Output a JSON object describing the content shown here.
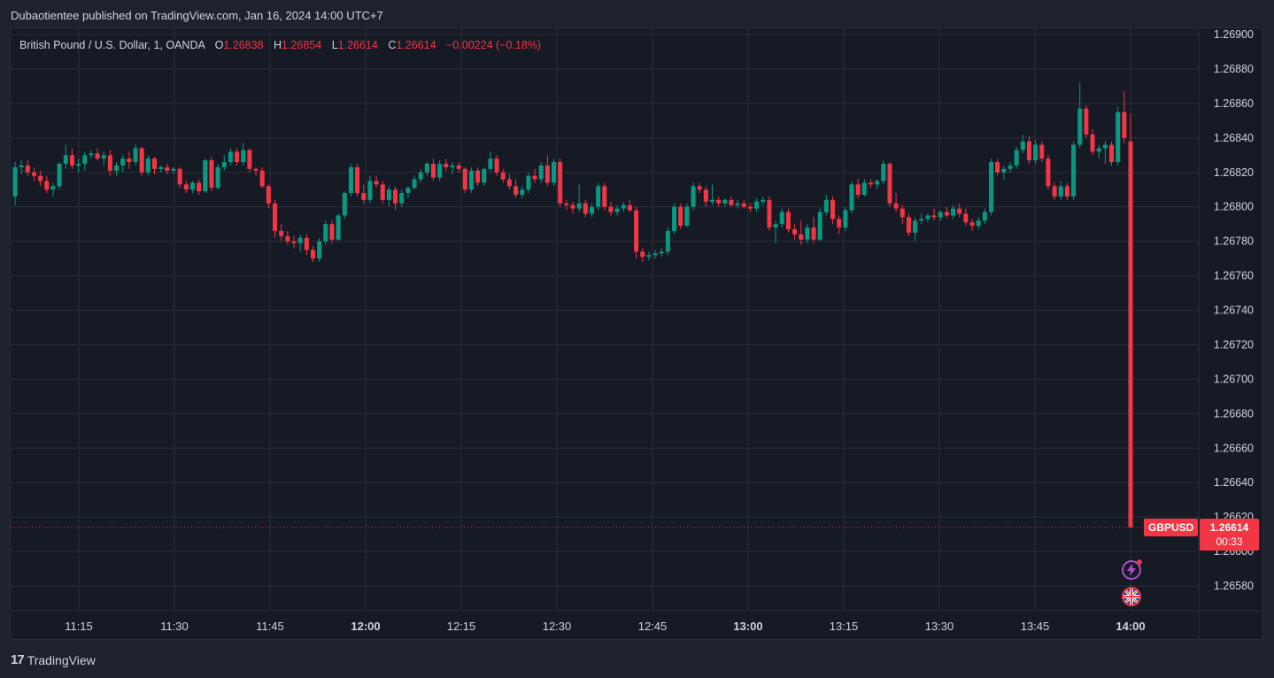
{
  "publisher": "Dubaotientee published on TradingView.com, Jan 16, 2024 14:00 UTC+7",
  "legend": {
    "symbol": "British Pound / U.S. Dollar, 1, OANDA",
    "o_label": "O",
    "o_value": "1.26838",
    "h_label": "H",
    "h_value": "1.26854",
    "l_label": "L",
    "l_value": "1.26614",
    "c_label": "C",
    "c_value": "1.26614",
    "change": "−0.00224 (−0.18%)"
  },
  "price_tag": {
    "symbol": "GBPUSD",
    "price": "1.26614",
    "timer": "00:33"
  },
  "footer": {
    "brand": "TradingView",
    "mark": "17"
  },
  "icons": {
    "bolt": "lightning-icon",
    "flag": "uk-flag-icon"
  },
  "colors": {
    "up": "#089981",
    "down": "#f23645",
    "background": "#161a25",
    "grid": "#2a2e39"
  },
  "chart_data": {
    "type": "candlestick",
    "symbol": "GBPUSD",
    "interval": "1",
    "y_ticks": [
      "1.26900",
      "1.26880",
      "1.26860",
      "1.26840",
      "1.26820",
      "1.26800",
      "1.26780",
      "1.26760",
      "1.26740",
      "1.26720",
      "1.26700",
      "1.26680",
      "1.26660",
      "1.26640",
      "1.26620",
      "1.26600",
      "1.26580"
    ],
    "ylim": [
      1.2657,
      1.26905
    ],
    "x_ticks": [
      {
        "label": "11:15",
        "bold": false
      },
      {
        "label": "11:30",
        "bold": false
      },
      {
        "label": "11:45",
        "bold": false
      },
      {
        "label": "12:00",
        "bold": true
      },
      {
        "label": "12:15",
        "bold": false
      },
      {
        "label": "12:30",
        "bold": false
      },
      {
        "label": "12:45",
        "bold": false
      },
      {
        "label": "13:00",
        "bold": true
      },
      {
        "label": "13:15",
        "bold": false
      },
      {
        "label": "13:30",
        "bold": false
      },
      {
        "label": "13:45",
        "bold": false
      },
      {
        "label": "14:00",
        "bold": true
      }
    ],
    "last_price": 1.26614,
    "candles": [
      [
        1.26806,
        1.26826,
        1.26801,
        1.26823
      ],
      [
        1.26823,
        1.26827,
        1.26819,
        1.26824
      ],
      [
        1.26824,
        1.26827,
        1.26818,
        1.2682
      ],
      [
        1.2682,
        1.26823,
        1.26815,
        1.26818
      ],
      [
        1.26818,
        1.26821,
        1.26812,
        1.26815
      ],
      [
        1.26815,
        1.26818,
        1.26808,
        1.2681
      ],
      [
        1.2681,
        1.26814,
        1.26806,
        1.26812
      ],
      [
        1.26812,
        1.26826,
        1.2681,
        1.26825
      ],
      [
        1.26825,
        1.26836,
        1.26822,
        1.2683
      ],
      [
        1.2683,
        1.26834,
        1.26822,
        1.26824
      ],
      [
        1.26824,
        1.26828,
        1.2682,
        1.26825
      ],
      [
        1.26825,
        1.26832,
        1.26821,
        1.2683
      ],
      [
        1.2683,
        1.26833,
        1.26828,
        1.26831
      ],
      [
        1.26831,
        1.26834,
        1.26827,
        1.26828
      ],
      [
        1.26828,
        1.26832,
        1.26824,
        1.2683
      ],
      [
        1.2683,
        1.26833,
        1.26818,
        1.26821
      ],
      [
        1.26821,
        1.26826,
        1.26818,
        1.26824
      ],
      [
        1.26824,
        1.2683,
        1.2682,
        1.26828
      ],
      [
        1.26828,
        1.26832,
        1.26822,
        1.26826
      ],
      [
        1.26826,
        1.26836,
        1.26824,
        1.26834
      ],
      [
        1.26834,
        1.26835,
        1.26818,
        1.2682
      ],
      [
        1.2682,
        1.2683,
        1.26818,
        1.26828
      ],
      [
        1.26828,
        1.26829,
        1.26819,
        1.26822
      ],
      [
        1.26822,
        1.26824,
        1.2682,
        1.26823
      ],
      [
        1.26823,
        1.26825,
        1.26819,
        1.26821
      ],
      [
        1.26821,
        1.26823,
        1.26819,
        1.26822
      ],
      [
        1.26822,
        1.26823,
        1.26811,
        1.26813
      ],
      [
        1.26813,
        1.26815,
        1.26808,
        1.2681
      ],
      [
        1.2681,
        1.26815,
        1.26808,
        1.26814
      ],
      [
        1.26814,
        1.26816,
        1.26807,
        1.26809
      ],
      [
        1.26809,
        1.26828,
        1.26808,
        1.26827
      ],
      [
        1.26827,
        1.26829,
        1.26809,
        1.26811
      ],
      [
        1.26811,
        1.26825,
        1.2681,
        1.26823
      ],
      [
        1.26823,
        1.2683,
        1.26821,
        1.26826
      ],
      [
        1.26826,
        1.26834,
        1.26824,
        1.26832
      ],
      [
        1.26832,
        1.26834,
        1.26824,
        1.26826
      ],
      [
        1.26826,
        1.26837,
        1.26824,
        1.26833
      ],
      [
        1.26833,
        1.26834,
        1.2682,
        1.26822
      ],
      [
        1.26822,
        1.26823,
        1.26818,
        1.26821
      ],
      [
        1.26821,
        1.26823,
        1.26811,
        1.26812
      ],
      [
        1.26812,
        1.26813,
        1.26799,
        1.26802
      ],
      [
        1.26802,
        1.26804,
        1.26782,
        1.26786
      ],
      [
        1.26786,
        1.2679,
        1.2678,
        1.26783
      ],
      [
        1.26783,
        1.26786,
        1.26778,
        1.2678
      ],
      [
        1.2678,
        1.26783,
        1.26776,
        1.26779
      ],
      [
        1.26779,
        1.26784,
        1.26774,
        1.26782
      ],
      [
        1.26782,
        1.26784,
        1.26772,
        1.26775
      ],
      [
        1.26775,
        1.26777,
        1.26768,
        1.2677
      ],
      [
        1.2677,
        1.26782,
        1.26768,
        1.2678
      ],
      [
        1.2678,
        1.26792,
        1.26778,
        1.2679
      ],
      [
        1.2679,
        1.26792,
        1.26779,
        1.26781
      ],
      [
        1.26781,
        1.26796,
        1.2678,
        1.26795
      ],
      [
        1.26795,
        1.26809,
        1.26793,
        1.26808
      ],
      [
        1.26808,
        1.26825,
        1.26806,
        1.26823
      ],
      [
        1.26823,
        1.26825,
        1.26806,
        1.26808
      ],
      [
        1.26808,
        1.26813,
        1.26802,
        1.26804
      ],
      [
        1.26804,
        1.26818,
        1.26802,
        1.26815
      ],
      [
        1.26815,
        1.26818,
        1.26811,
        1.26813
      ],
      [
        1.26813,
        1.26815,
        1.26802,
        1.26804
      ],
      [
        1.26804,
        1.26812,
        1.268,
        1.2681
      ],
      [
        1.2681,
        1.26812,
        1.26798,
        1.26802
      ],
      [
        1.26802,
        1.2681,
        1.268,
        1.26808
      ],
      [
        1.26808,
        1.26812,
        1.26805,
        1.26811
      ],
      [
        1.26811,
        1.26818,
        1.2681,
        1.26816
      ],
      [
        1.26816,
        1.26822,
        1.26814,
        1.2682
      ],
      [
        1.2682,
        1.26826,
        1.26818,
        1.26825
      ],
      [
        1.26825,
        1.26828,
        1.26815,
        1.26817
      ],
      [
        1.26817,
        1.26827,
        1.26815,
        1.26825
      ],
      [
        1.26825,
        1.26828,
        1.26821,
        1.26823
      ],
      [
        1.26823,
        1.26826,
        1.26819,
        1.26824
      ],
      [
        1.26824,
        1.26826,
        1.2682,
        1.26822
      ],
      [
        1.26822,
        1.26823,
        1.26808,
        1.2681
      ],
      [
        1.2681,
        1.26823,
        1.26808,
        1.26821
      ],
      [
        1.26821,
        1.26823,
        1.26812,
        1.26814
      ],
      [
        1.26814,
        1.26823,
        1.26812,
        1.26822
      ],
      [
        1.26822,
        1.26832,
        1.2682,
        1.26828
      ],
      [
        1.26828,
        1.2683,
        1.26818,
        1.2682
      ],
      [
        1.2682,
        1.26822,
        1.26814,
        1.26816
      ],
      [
        1.26816,
        1.26819,
        1.2681,
        1.26812
      ],
      [
        1.26812,
        1.26816,
        1.26805,
        1.26807
      ],
      [
        1.26807,
        1.26812,
        1.26805,
        1.2681
      ],
      [
        1.2681,
        1.2682,
        1.26808,
        1.26818
      ],
      [
        1.26818,
        1.26822,
        1.26814,
        1.26816
      ],
      [
        1.26816,
        1.26826,
        1.26814,
        1.26824
      ],
      [
        1.26824,
        1.2683,
        1.26812,
        1.26814
      ],
      [
        1.26814,
        1.26828,
        1.26812,
        1.26826
      ],
      [
        1.26826,
        1.26828,
        1.268,
        1.26802
      ],
      [
        1.26802,
        1.26804,
        1.26798,
        1.26801
      ],
      [
        1.26801,
        1.26803,
        1.26796,
        1.26799
      ],
      [
        1.26799,
        1.26813,
        1.26797,
        1.26802
      ],
      [
        1.26802,
        1.26804,
        1.26794,
        1.26796
      ],
      [
        1.26796,
        1.26802,
        1.26794,
        1.268
      ],
      [
        1.268,
        1.26814,
        1.26798,
        1.26812
      ],
      [
        1.26812,
        1.26814,
        1.26798,
        1.268
      ],
      [
        1.268,
        1.26803,
        1.26795,
        1.26797
      ],
      [
        1.26797,
        1.26801,
        1.26795,
        1.26799
      ],
      [
        1.26799,
        1.26803,
        1.26797,
        1.26801
      ],
      [
        1.26801,
        1.26804,
        1.26797,
        1.26798
      ],
      [
        1.26798,
        1.268,
        1.2677,
        1.26774
      ],
      [
        1.26774,
        1.26776,
        1.26768,
        1.26771
      ],
      [
        1.26771,
        1.26774,
        1.26769,
        1.26772
      ],
      [
        1.26772,
        1.26775,
        1.2677,
        1.26773
      ],
      [
        1.26773,
        1.26776,
        1.26771,
        1.26774
      ],
      [
        1.26774,
        1.26788,
        1.26772,
        1.26786
      ],
      [
        1.26786,
        1.26802,
        1.26784,
        1.268
      ],
      [
        1.268,
        1.26802,
        1.26787,
        1.26789
      ],
      [
        1.26789,
        1.26802,
        1.26788,
        1.268
      ],
      [
        1.268,
        1.26814,
        1.26798,
        1.26812
      ],
      [
        1.26812,
        1.26814,
        1.26808,
        1.2681
      ],
      [
        1.2681,
        1.26812,
        1.268,
        1.26803
      ],
      [
        1.26803,
        1.26813,
        1.26801,
        1.26804
      ],
      [
        1.26804,
        1.26806,
        1.268,
        1.26802
      ],
      [
        1.26802,
        1.26805,
        1.268,
        1.26804
      ],
      [
        1.26804,
        1.26806,
        1.268,
        1.26801
      ],
      [
        1.26801,
        1.26804,
        1.26799,
        1.26802
      ],
      [
        1.26802,
        1.26804,
        1.26799,
        1.268
      ],
      [
        1.268,
        1.26802,
        1.26797,
        1.26799
      ],
      [
        1.26799,
        1.26805,
        1.26797,
        1.26803
      ],
      [
        1.26803,
        1.26806,
        1.26801,
        1.26804
      ],
      [
        1.26804,
        1.26806,
        1.26786,
        1.26788
      ],
      [
        1.26788,
        1.26792,
        1.26779,
        1.2679
      ],
      [
        1.2679,
        1.26799,
        1.26788,
        1.26797
      ],
      [
        1.26797,
        1.26799,
        1.26785,
        1.26787
      ],
      [
        1.26787,
        1.2679,
        1.26781,
        1.26784
      ],
      [
        1.26784,
        1.26792,
        1.26778,
        1.26781
      ],
      [
        1.26781,
        1.2679,
        1.26779,
        1.26788
      ],
      [
        1.26788,
        1.26794,
        1.26779,
        1.26781
      ],
      [
        1.26781,
        1.26799,
        1.2678,
        1.26797
      ],
      [
        1.26797,
        1.26807,
        1.26795,
        1.26804
      ],
      [
        1.26804,
        1.26806,
        1.2679,
        1.26793
      ],
      [
        1.26793,
        1.26795,
        1.26784,
        1.26788
      ],
      [
        1.26788,
        1.268,
        1.26786,
        1.26798
      ],
      [
        1.26798,
        1.26815,
        1.26796,
        1.26813
      ],
      [
        1.26813,
        1.26816,
        1.26805,
        1.26807
      ],
      [
        1.26807,
        1.26816,
        1.26806,
        1.26814
      ],
      [
        1.26814,
        1.26816,
        1.26811,
        1.26813
      ],
      [
        1.26813,
        1.26816,
        1.2681,
        1.26815
      ],
      [
        1.26815,
        1.26827,
        1.26813,
        1.26825
      ],
      [
        1.26825,
        1.26826,
        1.268,
        1.26802
      ],
      [
        1.26802,
        1.26808,
        1.26797,
        1.26799
      ],
      [
        1.26799,
        1.26801,
        1.2679,
        1.26794
      ],
      [
        1.26794,
        1.26796,
        1.26783,
        1.26785
      ],
      [
        1.26785,
        1.26794,
        1.2678,
        1.26792
      ],
      [
        1.26792,
        1.26796,
        1.2679,
        1.26793
      ],
      [
        1.26793,
        1.26796,
        1.26791,
        1.26795
      ],
      [
        1.26795,
        1.26799,
        1.26792,
        1.26794
      ],
      [
        1.26794,
        1.26798,
        1.26792,
        1.26797
      ],
      [
        1.26797,
        1.268,
        1.26794,
        1.26795
      ],
      [
        1.26795,
        1.26801,
        1.26793,
        1.26799
      ],
      [
        1.26799,
        1.26802,
        1.26794,
        1.26796
      ],
      [
        1.26796,
        1.26799,
        1.26789,
        1.26791
      ],
      [
        1.26791,
        1.26793,
        1.26786,
        1.26789
      ],
      [
        1.26789,
        1.26794,
        1.26787,
        1.26792
      ],
      [
        1.26792,
        1.26799,
        1.2679,
        1.26797
      ],
      [
        1.26797,
        1.26828,
        1.26795,
        1.26826
      ],
      [
        1.26826,
        1.26828,
        1.26818,
        1.2682
      ],
      [
        1.2682,
        1.26824,
        1.26816,
        1.26822
      ],
      [
        1.26822,
        1.26826,
        1.2682,
        1.26824
      ],
      [
        1.26824,
        1.26835,
        1.26822,
        1.26833
      ],
      [
        1.26833,
        1.26842,
        1.26831,
        1.26838
      ],
      [
        1.26838,
        1.26841,
        1.26825,
        1.26827
      ],
      [
        1.26827,
        1.26839,
        1.26825,
        1.26836
      ],
      [
        1.26836,
        1.26838,
        1.26826,
        1.26828
      ],
      [
        1.26828,
        1.2683,
        1.2681,
        1.26812
      ],
      [
        1.26812,
        1.26814,
        1.26804,
        1.26806
      ],
      [
        1.26806,
        1.26815,
        1.26804,
        1.26812
      ],
      [
        1.26812,
        1.26814,
        1.26804,
        1.26806
      ],
      [
        1.26806,
        1.26838,
        1.26804,
        1.26836
      ],
      [
        1.26836,
        1.26872,
        1.26834,
        1.26857
      ],
      [
        1.26857,
        1.26859,
        1.2684,
        1.26842
      ],
      [
        1.26842,
        1.26845,
        1.2683,
        1.26832
      ],
      [
        1.26832,
        1.26836,
        1.26828,
        1.26834
      ],
      [
        1.26834,
        1.26838,
        1.26825,
        1.26836
      ],
      [
        1.26836,
        1.26838,
        1.26824,
        1.26826
      ],
      [
        1.26826,
        1.26858,
        1.26824,
        1.26855
      ],
      [
        1.26855,
        1.26867,
        1.26837,
        1.2684
      ],
      [
        1.26838,
        1.26854,
        1.26614,
        1.26614
      ]
    ]
  }
}
